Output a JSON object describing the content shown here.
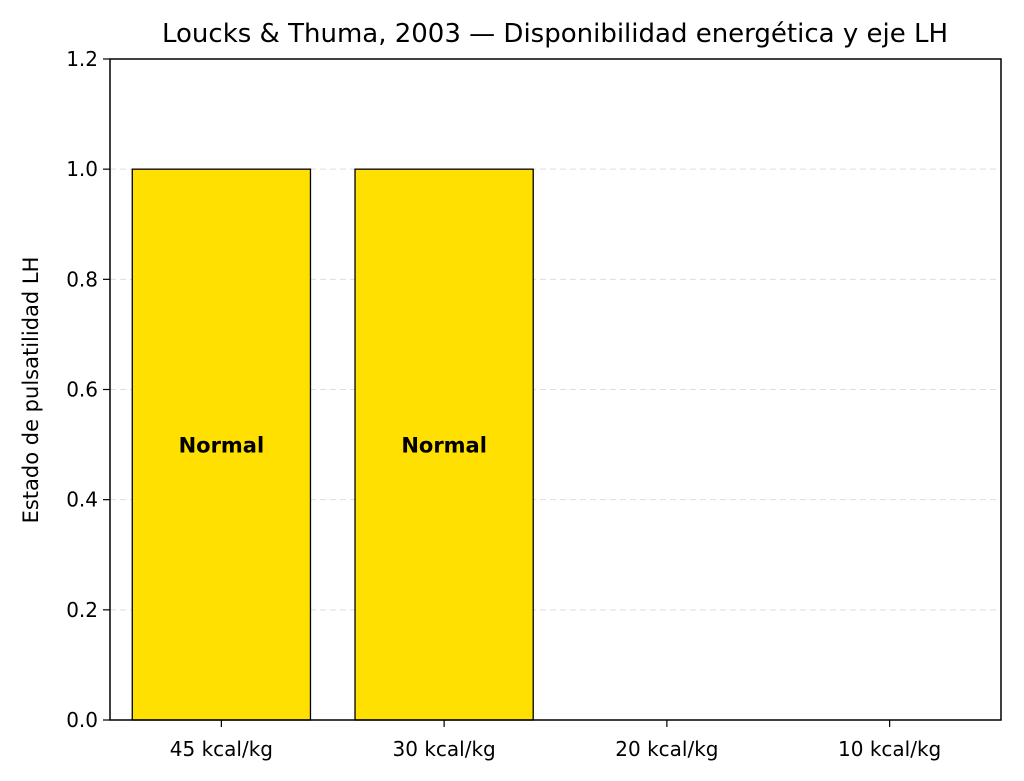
{
  "chart_data": {
    "type": "bar",
    "title": "Loucks & Thuma, 2003 — Disponibilidad energética y eje LH",
    "xlabel": "",
    "ylabel": "Estado de pulsatilidad LH",
    "categories": [
      "45 kcal/kg",
      "30 kcal/kg",
      "20 kcal/kg",
      "10 kcal/kg"
    ],
    "values": [
      1.0,
      1.0,
      0.0,
      0.0
    ],
    "bar_labels": [
      "Normal",
      "Normal",
      "",
      ""
    ],
    "ylim": [
      0,
      1.2
    ],
    "yticks": [
      "0.0",
      "0.2",
      "0.4",
      "0.6",
      "0.8",
      "1.0",
      "1.2"
    ],
    "grid": "horizontal dashed",
    "colors": {
      "bar_fill": "#FFE000",
      "bar_edge": "#000000",
      "grid": "#dddddd"
    }
  }
}
